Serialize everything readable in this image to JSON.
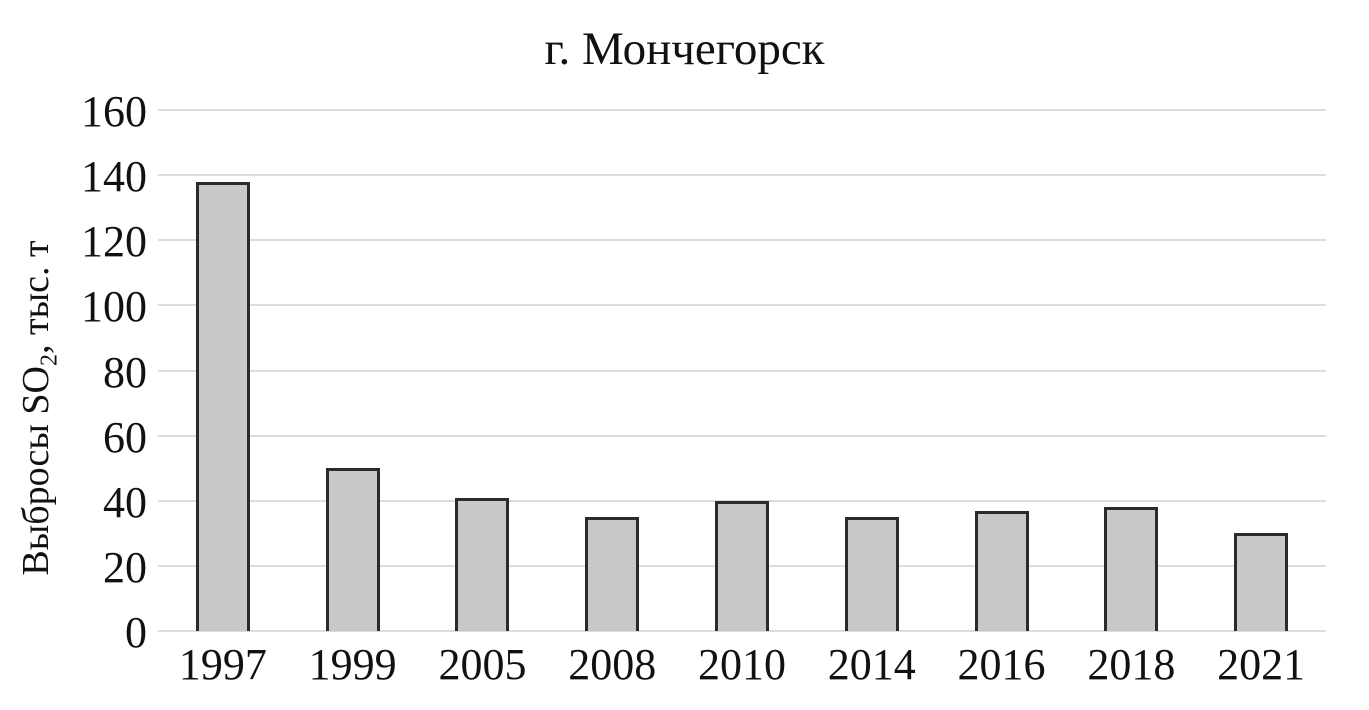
{
  "chart_data": {
    "type": "bar",
    "title": "г. Мончегорск",
    "categories": [
      "1997",
      "1999",
      "2005",
      "2008",
      "2010",
      "2014",
      "2016",
      "2018",
      "2021"
    ],
    "values": [
      138,
      50,
      41,
      35,
      40,
      35,
      37,
      38,
      30
    ],
    "xlabel": "",
    "ylabel": "Выбросы SO₂, тыс. т",
    "ylabel_parts": {
      "prefix": "Выбросы SO",
      "sub": "2",
      "suffix": ", тыс. т"
    },
    "ylim": [
      0,
      160
    ],
    "yticks": [
      0,
      20,
      40,
      60,
      80,
      100,
      120,
      140,
      160
    ],
    "grid": "horizontal",
    "legend": "none",
    "colors": {
      "bar_fill": "#c8c8c8",
      "bar_border": "#2b2b2b",
      "gridline": "#dcdcdc",
      "text": "#111111",
      "background": "#ffffff"
    }
  }
}
